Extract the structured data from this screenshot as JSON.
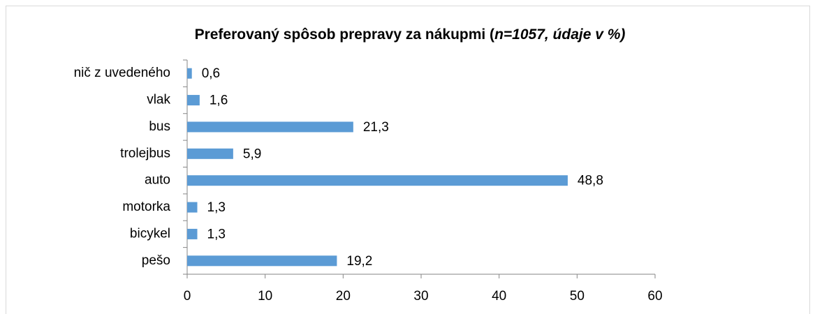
{
  "chart_data": {
    "type": "bar",
    "orientation": "horizontal",
    "title": "Preferovaný spôsob prepravy za nákupmi (",
    "title_italic": "n=1057, údaje v %)",
    "categories": [
      "nič z uvedeného",
      "vlak",
      "bus",
      "trolejbus",
      "auto",
      "motorka",
      "bicykel",
      "pešo"
    ],
    "values": [
      0.6,
      1.6,
      21.3,
      5.9,
      48.8,
      1.3,
      1.3,
      19.2
    ],
    "value_labels": [
      "0,6",
      "1,6",
      "21,3",
      "5,9",
      "48,8",
      "1,3",
      "1,3",
      "19,2"
    ],
    "color": "#5b9bd5",
    "xlim": [
      0,
      60
    ],
    "xticks": [
      0,
      10,
      20,
      30,
      40,
      50,
      60
    ],
    "grid": false
  }
}
